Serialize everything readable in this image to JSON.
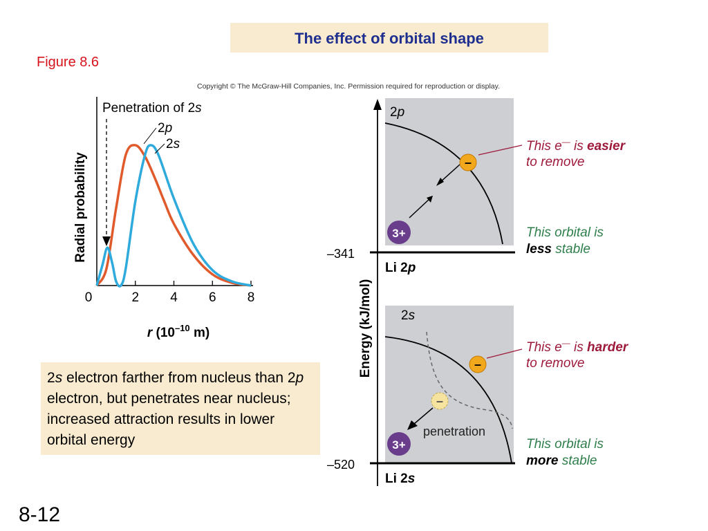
{
  "slide": {
    "title": "The effect of orbital shape",
    "figure_label": "Figure 8.6",
    "copyright": "Copyright © The McGraw-Hill Companies, Inc. Permission required for reproduction or display.",
    "note": {
      "s1": "2",
      "s2": "s",
      "s3": " electron farther from nucleus than 2",
      "s4": "p",
      "s5": " electron, but penetrates near nucleus; increased attraction results in lower orbital energy"
    },
    "slide_number": "8-12"
  },
  "radial_plot": {
    "ylabel": "Radial probability",
    "xlabel_r": "r",
    "xlabel_units": " (10",
    "xlabel_exp": "–10",
    "xlabel_m": " m)",
    "xticks": [
      "0",
      "2",
      "4",
      "6",
      "8"
    ],
    "penetration_label": "Penetration of 2",
    "penetration_s": "s",
    "label_2p_num": "2",
    "label_2p_letter": "p",
    "label_2s_num": "2",
    "label_2s_letter": "s",
    "colors": {
      "2p": "#e05a2b",
      "2s": "#2eaadc"
    }
  },
  "chart_data": {
    "type": "line",
    "xlabel": "r (10–10 m)",
    "ylabel": "Radial probability",
    "xlim": [
      0,
      8
    ],
    "series": [
      {
        "name": "2p",
        "x": [
          0,
          0.5,
          1,
          1.5,
          2,
          2.5,
          3,
          3.5,
          4,
          5,
          6,
          7,
          8
        ],
        "y": [
          0,
          0.12,
          0.55,
          0.93,
          1.0,
          0.92,
          0.77,
          0.6,
          0.44,
          0.22,
          0.08,
          0.02,
          0
        ]
      },
      {
        "name": "2s",
        "x": [
          0,
          0.3,
          0.55,
          0.8,
          1.0,
          1.25,
          1.5,
          2,
          2.5,
          2.8,
          3.2,
          4,
          5,
          6,
          7,
          8
        ],
        "y": [
          0,
          0.15,
          0.27,
          0.16,
          0.03,
          0.0,
          0.12,
          0.6,
          0.93,
          1.0,
          0.93,
          0.62,
          0.3,
          0.11,
          0.03,
          0
        ]
      }
    ]
  },
  "energy_diagram": {
    "ylabel": "Energy (kJ/mol)",
    "tick_top": "–341",
    "tick_bottom": "–520",
    "top": {
      "orbital_num": "2",
      "orbital_letter": "p",
      "level_prefix": "Li 2",
      "level_letter": "p",
      "electron": "–",
      "nucleus": "3+",
      "line1_a": "This e",
      "line1_b": "—",
      "line1_c": " is ",
      "line1_d": "easier",
      "line2": "to remove",
      "line3": "This orbital is",
      "line4_a": "less",
      "line4_b": " stable"
    },
    "bottom": {
      "orbital_num": "2",
      "orbital_letter": "s",
      "level_prefix": "Li 2",
      "level_letter": "s",
      "electron": "–",
      "ghost_electron": "–",
      "nucleus": "3+",
      "penetration": "penetration",
      "line1_a": "This e",
      "line1_b": "—",
      "line1_c": " is ",
      "line1_d": "harder",
      "line2": "to remove",
      "line3": "This orbital is",
      "line4_a": "more",
      "line4_b": " stable"
    },
    "colors": {
      "panel": "#cdcfd2",
      "emphasis": "#9e1a3b",
      "stable": "#2f7f4c",
      "electron": "#f2a81d",
      "nucleus": "#6a3c8c"
    }
  }
}
